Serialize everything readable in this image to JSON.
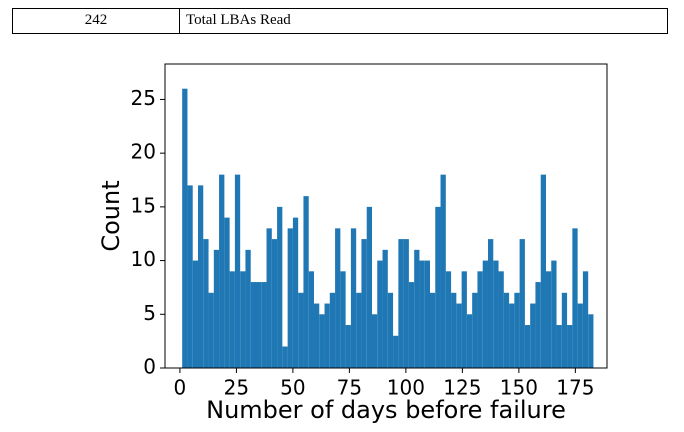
{
  "table": {
    "rows": [
      [
        "242",
        "Total LBAs Read"
      ]
    ]
  },
  "chart_data": {
    "type": "histogram",
    "xlabel": "Number of days before failure",
    "ylabel": "Count",
    "bins": [
      1,
      3.33,
      5.67,
      8,
      10.33,
      12.67,
      15,
      17.33,
      19.67,
      22,
      24.33,
      26.67,
      29,
      31.33,
      33.67,
      36,
      38.33,
      40.67,
      43,
      45.33,
      47.67,
      50,
      52.33,
      54.67,
      57,
      59.33,
      61.67,
      64,
      66.33,
      68.67,
      71,
      73.33,
      75.67,
      78,
      80.33,
      82.67,
      85,
      87.33,
      89.67,
      92,
      94.33,
      96.67,
      99,
      101.33,
      103.67,
      106,
      108.33,
      110.67,
      113,
      115.33,
      117.67,
      120,
      122.33,
      124.67,
      127,
      129.33,
      131.67,
      134,
      136.33,
      138.67,
      141,
      143.33,
      145.67,
      148,
      150.33,
      152.67,
      155,
      157.33,
      159.67,
      162,
      164.33,
      166.67,
      169,
      171.33,
      173.67,
      176,
      178.33,
      180.67,
      183
    ],
    "values": [
      26,
      17,
      10,
      17,
      12,
      7,
      11,
      18,
      14,
      9,
      18,
      9,
      11,
      8,
      8,
      8,
      13,
      12,
      15,
      2,
      13,
      14,
      7,
      16,
      9,
      6,
      5,
      6,
      7,
      13,
      9,
      4,
      13,
      7,
      12,
      15,
      5,
      10,
      11,
      7,
      3,
      12,
      12,
      8,
      11,
      10,
      10,
      7,
      15,
      18,
      9,
      7,
      6,
      9,
      5,
      7,
      9,
      10,
      12,
      10,
      9,
      7,
      6,
      7,
      12,
      4,
      6,
      8,
      18,
      9,
      10,
      4,
      7,
      4,
      13,
      6,
      9,
      5
    ],
    "color": "#1f77b4",
    "xlim": [
      -6.6,
      189
    ],
    "ylim": [
      0,
      28.3
    ],
    "xticks": [
      0,
      25,
      50,
      75,
      100,
      125,
      150,
      175
    ],
    "yticks": [
      0,
      5,
      10,
      15,
      20,
      25
    ]
  }
}
